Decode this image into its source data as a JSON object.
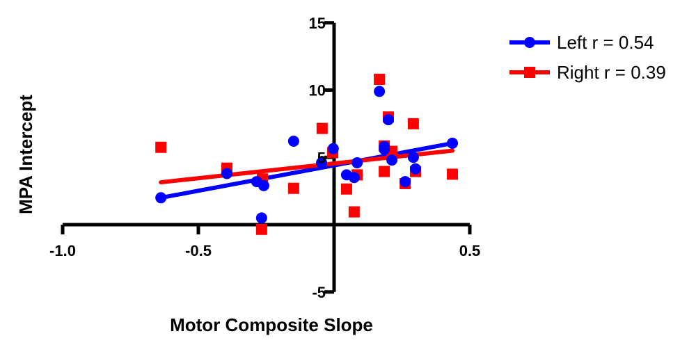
{
  "chart_data": {
    "type": "scatter",
    "title": "",
    "xlabel": "Motor Composite Slope",
    "ylabel": "MPA Intercept",
    "xlim": [
      -1.0,
      0.5
    ],
    "ylim": [
      -5,
      15
    ],
    "xticks": [
      "-1.0",
      "-0.5",
      "0.5"
    ],
    "yticks": [
      "15",
      "10",
      "5",
      "-5"
    ],
    "xtick_values": [
      -1.0,
      -0.5,
      0.5
    ],
    "ytick_values": [
      15,
      10,
      5,
      -5
    ],
    "grid": false,
    "legend_position": "top-right",
    "series": [
      {
        "name": "Left r = 0.54",
        "color": "#0000ff",
        "marker": "circle",
        "x": [
          -0.638,
          -0.395,
          -0.285,
          -0.259,
          -0.267,
          -0.149,
          -0.046,
          -0.003,
          0.046,
          0.074,
          0.085,
          0.167,
          0.185,
          0.185,
          0.2,
          0.213,
          0.262,
          0.292,
          0.3,
          0.436
        ],
        "y": [
          2.0,
          3.8,
          3.2,
          2.9,
          0.5,
          6.2,
          4.6,
          5.65,
          3.7,
          3.5,
          4.6,
          9.9,
          5.8,
          5.6,
          7.8,
          4.8,
          3.2,
          5.0,
          4.15,
          6.05
        ],
        "fit": {
          "x": [
            -0.638,
            0.436
          ],
          "y": [
            2.0,
            6.05
          ]
        }
      },
      {
        "name": "Right r = 0.39",
        "color": "#ff0000",
        "marker": "square",
        "x": [
          -0.638,
          -0.395,
          -0.264,
          -0.267,
          -0.149,
          -0.044,
          -0.005,
          0.046,
          0.074,
          0.085,
          0.167,
          0.185,
          0.2,
          0.185,
          0.213,
          0.262,
          0.292,
          0.3,
          0.436
        ],
        "y": [
          5.75,
          4.2,
          3.4,
          -0.35,
          2.7,
          7.15,
          5.35,
          2.65,
          0.95,
          3.7,
          10.8,
          5.85,
          8.0,
          3.95,
          5.45,
          3.05,
          7.5,
          3.95,
          3.75
        ],
        "fit": {
          "x": [
            -0.638,
            0.436
          ],
          "y": [
            3.15,
            5.5
          ]
        }
      }
    ]
  }
}
